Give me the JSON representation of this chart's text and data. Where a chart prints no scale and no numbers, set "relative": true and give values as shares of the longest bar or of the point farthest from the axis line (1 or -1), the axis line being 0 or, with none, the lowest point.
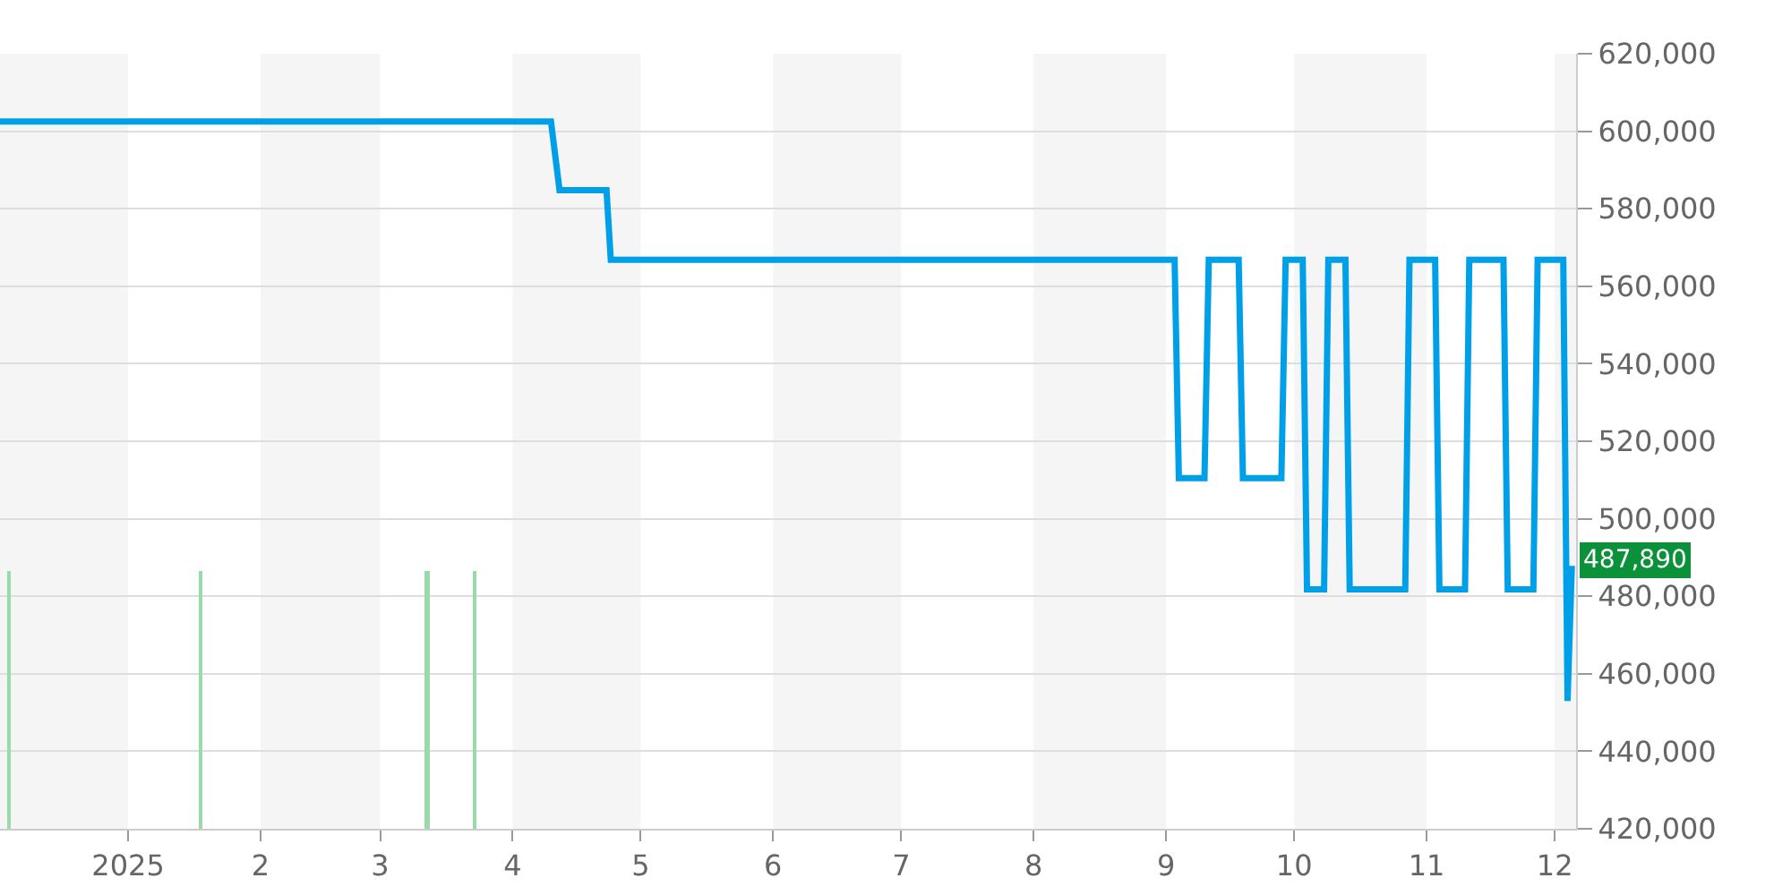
{
  "chart_data": [
    {
      "type": "line",
      "x": [
        "2024-12-02",
        "2025-04-10",
        "2025-04-12",
        "2025-04-23",
        "2025-04-24",
        "2025-09-03",
        "2025-09-04",
        "2025-09-10",
        "2025-09-11",
        "2025-09-18",
        "2025-09-19",
        "2025-09-28",
        "2025-09-29",
        "2025-10-03",
        "2025-10-04",
        "2025-10-08",
        "2025-10-09",
        "2025-10-13",
        "2025-10-14",
        "2025-10-27",
        "2025-10-28",
        "2025-11-03",
        "2025-11-04",
        "2025-11-10",
        "2025-11-11",
        "2025-11-19",
        "2025-11-20",
        "2025-11-26",
        "2025-11-27",
        "2025-12-03",
        "2025-12-04",
        "2025-12-05"
      ],
      "series": [
        {
          "color": "#00a0e9",
          "values": [
            602500,
            602500,
            584800,
            584800,
            566800,
            566800,
            510500,
            510500,
            566800,
            566800,
            510500,
            510500,
            566800,
            566800,
            481800,
            481800,
            566800,
            566800,
            481800,
            481800,
            566800,
            566800,
            481800,
            481800,
            566800,
            566800,
            481800,
            481800,
            566800,
            566800,
            453000,
            487890
          ]
        }
      ],
      "xlim": [
        "2024-12-02",
        "2025-12-06"
      ],
      "xticks": [
        {
          "value": "2025-01-01",
          "label": "2025"
        },
        {
          "value": "2025-02-01",
          "label": "2"
        },
        {
          "value": "2025-03-01",
          "label": "3"
        },
        {
          "value": "2025-04-01",
          "label": "4"
        },
        {
          "value": "2025-05-01",
          "label": "5"
        },
        {
          "value": "2025-06-01",
          "label": "6"
        },
        {
          "value": "2025-07-01",
          "label": "7"
        },
        {
          "value": "2025-08-01",
          "label": "8"
        },
        {
          "value": "2025-09-01",
          "label": "9"
        },
        {
          "value": "2025-10-01",
          "label": "10"
        },
        {
          "value": "2025-11-01",
          "label": "11"
        },
        {
          "value": "2025-12-01",
          "label": "12"
        }
      ],
      "ylim": [
        420000,
        620000
      ],
      "yticks": [
        {
          "value": 420000,
          "label": "420,000"
        },
        {
          "value": 440000,
          "label": "440,000"
        },
        {
          "value": 460000,
          "label": "460,000"
        },
        {
          "value": 480000,
          "label": "480,000"
        },
        {
          "value": 500000,
          "label": "500,000"
        },
        {
          "value": 520000,
          "label": "520,000"
        },
        {
          "value": 540000,
          "label": "540,000"
        },
        {
          "value": 560000,
          "label": "560,000"
        },
        {
          "value": 580000,
          "label": "580,000"
        },
        {
          "value": 600000,
          "label": "600,000"
        },
        {
          "value": 620000,
          "label": "620,000"
        }
      ],
      "grid": "y",
      "marker": "none",
      "line_style": "solid",
      "bands": [
        {
          "axis": "x",
          "from": "2024-12-02",
          "to": "2025-01-01",
          "color": "#f5f5f5"
        },
        {
          "axis": "x",
          "from": "2025-02-01",
          "to": "2025-03-01",
          "color": "#f5f5f5"
        },
        {
          "axis": "x",
          "from": "2025-04-01",
          "to": "2025-05-01",
          "color": "#f5f5f5"
        },
        {
          "axis": "x",
          "from": "2025-06-01",
          "to": "2025-07-01",
          "color": "#f5f5f5"
        },
        {
          "axis": "x",
          "from": "2025-08-01",
          "to": "2025-09-01",
          "color": "#f5f5f5"
        },
        {
          "axis": "x",
          "from": "2025-10-01",
          "to": "2025-11-01",
          "color": "#f5f5f5"
        },
        {
          "axis": "x",
          "from": "2025-12-01",
          "to": "2025-12-06",
          "color": "#f5f5f5"
        }
      ],
      "annotations": [
        {
          "text": "487,890",
          "x": "2025-12-05",
          "y": 487890
        }
      ]
    },
    {
      "type": "bar",
      "relative": true,
      "x": [
        "2024-12-04",
        "2025-01-18",
        "2025-03-12",
        "2025-03-23"
      ],
      "series": [
        {
          "color": "#9bd9a8",
          "values": [
            1,
            1,
            1,
            1
          ]
        }
      ],
      "xlim": [
        "2024-12-02",
        "2025-12-06"
      ],
      "tick_labels": false
    }
  ]
}
